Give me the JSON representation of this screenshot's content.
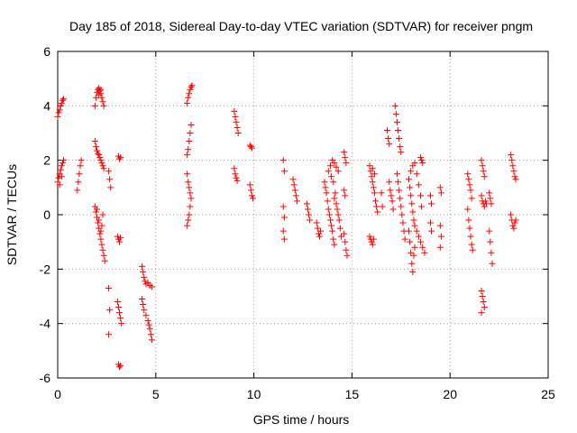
{
  "chart_data": {
    "type": "scatter",
    "title": "Day 185 of 2018, Sidereal Day-to-day VTEC variation (SDTVAR) for receiver pngm",
    "xlabel": "GPS time / hours",
    "ylabel": "SDTVAR / TECUs",
    "xlim": [
      0,
      25
    ],
    "ylim": [
      -6,
      6
    ],
    "xticks": [
      0,
      5,
      10,
      15,
      20,
      25
    ],
    "yticks": [
      -6,
      -4,
      -2,
      0,
      2,
      4,
      6
    ],
    "xtick_labels": [
      "0",
      "5",
      "10",
      "15",
      "20",
      "25"
    ],
    "ytick_labels": [
      "-6",
      "-4",
      "-2",
      "0",
      "2",
      "4",
      "6"
    ],
    "grid": true,
    "marker": "plus",
    "color": "#ff0000",
    "series": [
      {
        "name": "SDTVAR",
        "points": [
          [
            0.0,
            3.6
          ],
          [
            0.05,
            3.75
          ],
          [
            0.1,
            3.85
          ],
          [
            0.15,
            4.0
          ],
          [
            0.2,
            4.1
          ],
          [
            0.25,
            4.2
          ],
          [
            0.3,
            4.25
          ],
          [
            0.0,
            1.2
          ],
          [
            0.05,
            1.35
          ],
          [
            0.1,
            1.5
          ],
          [
            0.15,
            1.65
          ],
          [
            0.2,
            1.8
          ],
          [
            0.25,
            1.9
          ],
          [
            0.3,
            2.0
          ],
          [
            0.1,
            1.1
          ],
          [
            0.2,
            1.4
          ],
          [
            1.0,
            0.9
          ],
          [
            1.05,
            1.2
          ],
          [
            1.1,
            1.5
          ],
          [
            1.15,
            1.8
          ],
          [
            1.2,
            2.0
          ],
          [
            1.9,
            4.0
          ],
          [
            1.95,
            4.3
          ],
          [
            2.0,
            4.5
          ],
          [
            2.05,
            4.6
          ],
          [
            2.1,
            4.65
          ],
          [
            2.15,
            4.55
          ],
          [
            2.2,
            4.45
          ],
          [
            2.25,
            4.3
          ],
          [
            2.3,
            4.15
          ],
          [
            2.35,
            4.0
          ],
          [
            2.2,
            4.6
          ],
          [
            2.1,
            4.4
          ],
          [
            1.9,
            2.7
          ],
          [
            1.95,
            2.5
          ],
          [
            2.0,
            2.35
          ],
          [
            2.05,
            2.25
          ],
          [
            2.1,
            2.2
          ],
          [
            2.15,
            2.1
          ],
          [
            2.2,
            2.0
          ],
          [
            2.25,
            1.9
          ],
          [
            2.3,
            1.8
          ],
          [
            2.35,
            1.7
          ],
          [
            1.9,
            0.3
          ],
          [
            1.95,
            0.1
          ],
          [
            2.0,
            -0.1
          ],
          [
            2.05,
            -0.3
          ],
          [
            2.1,
            -0.5
          ],
          [
            2.15,
            -0.7
          ],
          [
            2.2,
            -0.9
          ],
          [
            2.25,
            -1.1
          ],
          [
            2.3,
            -1.3
          ],
          [
            2.35,
            -1.5
          ],
          [
            2.4,
            -1.7
          ],
          [
            2.0,
            0.2
          ],
          [
            2.1,
            -0.2
          ],
          [
            2.2,
            -0.6
          ],
          [
            2.3,
            0.0
          ],
          [
            2.25,
            -0.4
          ],
          [
            2.6,
            1.6
          ],
          [
            2.65,
            1.3
          ],
          [
            2.7,
            1.0
          ],
          [
            2.6,
            -2.7
          ],
          [
            2.65,
            -3.5
          ],
          [
            2.6,
            -4.4
          ],
          [
            3.1,
            2.15
          ],
          [
            3.15,
            2.05
          ],
          [
            3.2,
            2.1
          ],
          [
            3.05,
            -0.8
          ],
          [
            3.1,
            -0.9
          ],
          [
            3.15,
            -1.0
          ],
          [
            3.2,
            -0.85
          ],
          [
            3.05,
            -3.2
          ],
          [
            3.1,
            -3.4
          ],
          [
            3.15,
            -3.6
          ],
          [
            3.2,
            -3.8
          ],
          [
            3.25,
            -4.0
          ],
          [
            3.1,
            -5.5
          ],
          [
            3.15,
            -5.6
          ],
          [
            3.2,
            -5.55
          ],
          [
            4.3,
            -1.9
          ],
          [
            4.35,
            -2.1
          ],
          [
            4.4,
            -2.3
          ],
          [
            4.45,
            -2.45
          ],
          [
            4.5,
            -2.55
          ],
          [
            4.6,
            -2.5
          ],
          [
            4.7,
            -2.6
          ],
          [
            4.8,
            -2.65
          ],
          [
            4.3,
            -3.1
          ],
          [
            4.35,
            -3.3
          ],
          [
            4.4,
            -3.5
          ],
          [
            4.5,
            -3.7
          ],
          [
            4.6,
            -3.9
          ],
          [
            4.65,
            -4.05
          ],
          [
            4.7,
            -4.2
          ],
          [
            4.75,
            -4.4
          ],
          [
            4.8,
            -4.6
          ],
          [
            6.6,
            4.1
          ],
          [
            6.65,
            4.3
          ],
          [
            6.7,
            4.45
          ],
          [
            6.75,
            4.6
          ],
          [
            6.8,
            4.7
          ],
          [
            6.85,
            4.75
          ],
          [
            6.6,
            2.2
          ],
          [
            6.65,
            2.4
          ],
          [
            6.7,
            2.7
          ],
          [
            6.75,
            3.0
          ],
          [
            6.8,
            3.3
          ],
          [
            6.6,
            1.5
          ],
          [
            6.65,
            1.2
          ],
          [
            6.7,
            1.0
          ],
          [
            6.75,
            0.8
          ],
          [
            6.6,
            -0.4
          ],
          [
            6.65,
            -0.2
          ],
          [
            6.7,
            0.0
          ],
          [
            6.75,
            0.3
          ],
          [
            6.8,
            0.6
          ],
          [
            9.0,
            3.8
          ],
          [
            9.05,
            3.6
          ],
          [
            9.1,
            3.4
          ],
          [
            9.15,
            3.2
          ],
          [
            9.2,
            3.0
          ],
          [
            9.0,
            1.7
          ],
          [
            9.05,
            1.5
          ],
          [
            9.1,
            1.35
          ],
          [
            9.15,
            1.25
          ],
          [
            9.8,
            2.55
          ],
          [
            9.85,
            2.5
          ],
          [
            9.9,
            2.45
          ],
          [
            9.8,
            1.1
          ],
          [
            9.85,
            0.9
          ],
          [
            9.9,
            0.7
          ],
          [
            9.95,
            0.6
          ],
          [
            11.5,
            2.0
          ],
          [
            11.55,
            1.6
          ],
          [
            11.5,
            0.3
          ],
          [
            11.55,
            -0.1
          ],
          [
            11.5,
            -0.6
          ],
          [
            11.55,
            -0.9
          ],
          [
            12.0,
            1.3
          ],
          [
            12.05,
            1.1
          ],
          [
            12.1,
            0.9
          ],
          [
            12.15,
            0.7
          ],
          [
            12.2,
            0.5
          ],
          [
            12.7,
            0.4
          ],
          [
            12.75,
            0.2
          ],
          [
            12.8,
            0.0
          ],
          [
            12.85,
            -0.2
          ],
          [
            13.2,
            -0.3
          ],
          [
            13.25,
            -0.5
          ],
          [
            13.3,
            -0.7
          ],
          [
            13.35,
            -0.8
          ],
          [
            13.4,
            -0.6
          ],
          [
            13.6,
            1.2
          ],
          [
            13.65,
            1.0
          ],
          [
            13.7,
            0.8
          ],
          [
            13.75,
            0.5
          ],
          [
            13.8,
            0.2
          ],
          [
            13.85,
            0.0
          ],
          [
            13.9,
            -0.2
          ],
          [
            13.95,
            -0.4
          ],
          [
            14.0,
            -0.6
          ],
          [
            14.05,
            -0.9
          ],
          [
            14.1,
            -1.1
          ],
          [
            13.8,
            1.6
          ],
          [
            13.9,
            1.8
          ],
          [
            14.0,
            2.0
          ],
          [
            14.1,
            1.9
          ],
          [
            14.2,
            1.75
          ],
          [
            14.3,
            1.6
          ],
          [
            13.95,
            1.4
          ],
          [
            14.05,
            1.2
          ],
          [
            14.1,
            0.6
          ],
          [
            14.15,
            0.8
          ],
          [
            14.2,
            0.4
          ],
          [
            14.25,
            0.2
          ],
          [
            14.3,
            0.0
          ],
          [
            14.35,
            -0.2
          ],
          [
            14.4,
            -0.5
          ],
          [
            14.45,
            -0.8
          ],
          [
            14.6,
            2.3
          ],
          [
            14.65,
            2.1
          ],
          [
            14.7,
            1.9
          ],
          [
            14.6,
            0.9
          ],
          [
            14.65,
            0.7
          ],
          [
            14.6,
            -0.7
          ],
          [
            14.65,
            -1.0
          ],
          [
            14.7,
            -1.3
          ],
          [
            14.75,
            -1.5
          ],
          [
            15.9,
            1.8
          ],
          [
            15.95,
            1.6
          ],
          [
            16.0,
            1.4
          ],
          [
            16.05,
            1.2
          ],
          [
            16.1,
            1.0
          ],
          [
            16.15,
            0.8
          ],
          [
            16.2,
            0.5
          ],
          [
            16.25,
            0.3
          ],
          [
            16.3,
            0.1
          ],
          [
            16.05,
            1.7
          ],
          [
            16.15,
            1.5
          ],
          [
            15.9,
            -0.8
          ],
          [
            15.95,
            -0.9
          ],
          [
            16.0,
            -1.0
          ],
          [
            16.05,
            -1.1
          ],
          [
            16.1,
            -0.9
          ],
          [
            16.5,
            0.8
          ],
          [
            16.55,
            0.3
          ],
          [
            16.8,
            3.1
          ],
          [
            16.85,
            2.8
          ],
          [
            16.9,
            2.6
          ],
          [
            16.9,
            1.2
          ],
          [
            16.95,
            0.9
          ],
          [
            17.0,
            0.7
          ],
          [
            17.05,
            0.5
          ],
          [
            17.1,
            0.2
          ],
          [
            17.2,
            4.0
          ],
          [
            17.25,
            3.7
          ],
          [
            17.3,
            3.4
          ],
          [
            17.35,
            3.1
          ],
          [
            17.4,
            2.8
          ],
          [
            17.45,
            2.5
          ],
          [
            17.5,
            2.3
          ],
          [
            17.3,
            1.5
          ],
          [
            17.35,
            1.2
          ],
          [
            17.4,
            0.9
          ],
          [
            17.45,
            0.6
          ],
          [
            17.5,
            0.3
          ],
          [
            17.55,
            0.0
          ],
          [
            17.6,
            -0.3
          ],
          [
            17.65,
            -0.6
          ],
          [
            17.7,
            -0.9
          ],
          [
            17.9,
            1.3
          ],
          [
            17.95,
            1.0
          ],
          [
            18.0,
            0.7
          ],
          [
            18.05,
            0.4
          ],
          [
            18.1,
            0.1
          ],
          [
            18.15,
            -0.2
          ],
          [
            17.9,
            -0.6
          ],
          [
            17.95,
            -1.0
          ],
          [
            18.0,
            -1.4
          ],
          [
            18.05,
            -1.8
          ],
          [
            18.1,
            -2.1
          ],
          [
            18.15,
            -1.5
          ],
          [
            18.2,
            -1.2
          ],
          [
            18.0,
            1.6
          ],
          [
            18.1,
            1.8
          ],
          [
            18.2,
            1.9
          ],
          [
            18.3,
            1.5
          ],
          [
            18.4,
            1.1
          ],
          [
            18.5,
            0.7
          ],
          [
            18.55,
            0.3
          ],
          [
            18.2,
            -0.4
          ],
          [
            18.3,
            -0.6
          ],
          [
            18.4,
            -0.8
          ],
          [
            18.5,
            -1.0
          ],
          [
            18.6,
            -1.2
          ],
          [
            18.7,
            -1.4
          ],
          [
            18.5,
            2.1
          ],
          [
            18.55,
            2.0
          ],
          [
            18.6,
            1.9
          ],
          [
            19.0,
            0.7
          ],
          [
            19.05,
            0.4
          ],
          [
            19.0,
            -0.3
          ],
          [
            19.05,
            -0.6
          ],
          [
            19.5,
            1.0
          ],
          [
            19.55,
            0.8
          ],
          [
            19.5,
            -0.4
          ],
          [
            19.55,
            -0.8
          ],
          [
            19.5,
            -1.2
          ],
          [
            20.9,
            1.5
          ],
          [
            20.95,
            1.3
          ],
          [
            21.0,
            1.1
          ],
          [
            21.05,
            0.9
          ],
          [
            21.1,
            0.6
          ],
          [
            20.9,
            0.2
          ],
          [
            20.95,
            -0.2
          ],
          [
            21.0,
            -0.5
          ],
          [
            21.05,
            -0.8
          ],
          [
            21.1,
            -1.1
          ],
          [
            21.15,
            -1.3
          ],
          [
            21.6,
            2.0
          ],
          [
            21.65,
            1.8
          ],
          [
            21.7,
            1.6
          ],
          [
            21.75,
            1.4
          ],
          [
            21.6,
            0.7
          ],
          [
            21.65,
            0.5
          ],
          [
            21.7,
            0.4
          ],
          [
            21.75,
            0.3
          ],
          [
            21.8,
            0.5
          ],
          [
            21.85,
            0.4
          ],
          [
            21.6,
            -2.8
          ],
          [
            21.65,
            -3.0
          ],
          [
            21.7,
            -3.2
          ],
          [
            21.75,
            -3.4
          ],
          [
            21.6,
            -3.6
          ],
          [
            22.0,
            0.8
          ],
          [
            22.05,
            0.6
          ],
          [
            22.1,
            0.4
          ],
          [
            22.0,
            -0.6
          ],
          [
            22.05,
            -1.0
          ],
          [
            22.1,
            -1.4
          ],
          [
            22.15,
            -1.8
          ],
          [
            23.1,
            2.2
          ],
          [
            23.15,
            2.0
          ],
          [
            23.2,
            1.8
          ],
          [
            23.25,
            1.6
          ],
          [
            23.3,
            1.4
          ],
          [
            23.35,
            1.3
          ],
          [
            23.1,
            0.0
          ],
          [
            23.15,
            -0.2
          ],
          [
            23.2,
            -0.4
          ],
          [
            23.25,
            -0.5
          ],
          [
            23.3,
            -0.3
          ],
          [
            23.35,
            -0.2
          ]
        ]
      }
    ]
  }
}
